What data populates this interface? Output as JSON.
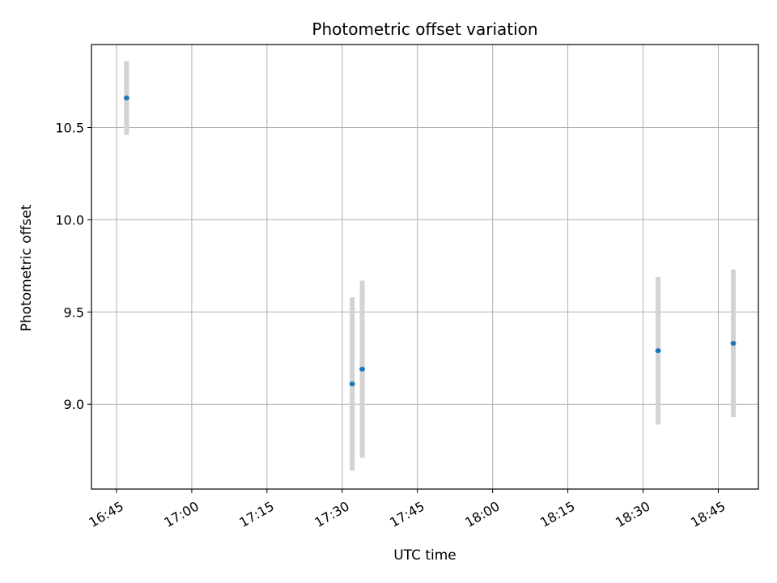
{
  "chart_data": {
    "type": "scatter",
    "title": "Photometric offset variation",
    "xlabel": "UTC time",
    "ylabel": "Photometric offset",
    "x_ticks": [
      "16:45",
      "17:00",
      "17:15",
      "17:30",
      "17:45",
      "18:00",
      "18:15",
      "18:30",
      "18:45"
    ],
    "y_ticks": [
      "9.0",
      "9.5",
      "10.0",
      "10.5"
    ],
    "xlim": [
      "16:40",
      "18:53"
    ],
    "ylim": [
      8.54,
      10.95
    ],
    "grid": true,
    "errorbar_color": "#d3d3d3",
    "marker_color": "#1f77b4",
    "points": [
      {
        "x": "16:47",
        "y": 10.66,
        "err": 0.2
      },
      {
        "x": "17:32",
        "y": 9.11,
        "err": 0.47
      },
      {
        "x": "17:34",
        "y": 9.19,
        "err": 0.48
      },
      {
        "x": "18:33",
        "y": 9.29,
        "err": 0.4
      },
      {
        "x": "18:48",
        "y": 9.33,
        "err": 0.4
      }
    ]
  }
}
